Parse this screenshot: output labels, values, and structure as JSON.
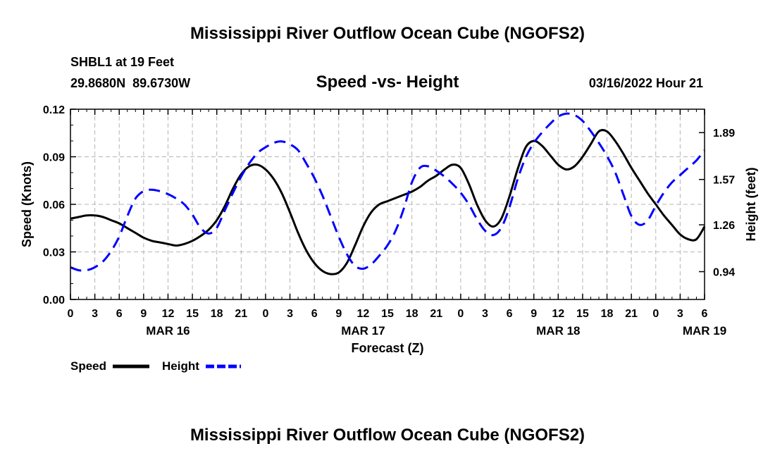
{
  "header": {
    "title": "Mississippi River Outflow Ocean Cube (NGOFS2)",
    "station": "SHBL1 at 19 Feet",
    "coords": "29.8680N  89.6730W",
    "subtitle": "Speed -vs- Height",
    "datetime": "03/16/2022 Hour 21"
  },
  "footer": {
    "title": "Mississippi River Outflow Ocean Cube (NGOFS2)"
  },
  "chart_data": {
    "type": "line",
    "title": "Speed -vs- Height",
    "xlabel": "Forecast (Z)",
    "ylabel": "Speed (Knots)",
    "y2label": "Height (feet)",
    "xlim": [
      0,
      78
    ],
    "ylim": [
      0,
      0.12
    ],
    "y2lim": [
      0.75,
      2.05
    ],
    "grid": true,
    "x_ticks": [
      0,
      3,
      6,
      9,
      12,
      15,
      18,
      21,
      24,
      27,
      30,
      33,
      36,
      39,
      42,
      45,
      48,
      51,
      54,
      57,
      60,
      63,
      66,
      69,
      72,
      75,
      78
    ],
    "x_tick_labels": [
      "0",
      "3",
      "6",
      "9",
      "12",
      "15",
      "18",
      "21",
      "0",
      "3",
      "6",
      "9",
      "12",
      "15",
      "18",
      "21",
      "0",
      "3",
      "6",
      "9",
      "12",
      "15",
      "18",
      "21",
      "0",
      "3",
      "6"
    ],
    "date_labels": [
      {
        "x": 12,
        "label": "MAR 16"
      },
      {
        "x": 36,
        "label": "MAR 17"
      },
      {
        "x": 60,
        "label": "MAR 18"
      },
      {
        "x": 78,
        "label": "MAR 19"
      }
    ],
    "y_ticks": [
      0.0,
      0.03,
      0.06,
      0.09,
      0.12
    ],
    "y_tick_labels": [
      "0.00",
      "0.03",
      "0.06",
      "0.09",
      "0.12"
    ],
    "y2_ticks": [
      0.94,
      1.26,
      1.57,
      1.89
    ],
    "y2_tick_labels": [
      "0.94",
      "1.26",
      "1.57",
      "1.89"
    ],
    "series": [
      {
        "name": "Speed",
        "axis": "left",
        "color": "#000000",
        "dash": "solid",
        "x": [
          0,
          1,
          2,
          3,
          4,
          5,
          6,
          7,
          8,
          9,
          10,
          11,
          12,
          13,
          14,
          15,
          16,
          17,
          18,
          19,
          20,
          21,
          22,
          23,
          24,
          25,
          26,
          27,
          28,
          29,
          30,
          31,
          32,
          33,
          34,
          35,
          36,
          37,
          38,
          39,
          40,
          41,
          42,
          43,
          44,
          45,
          46,
          47,
          48,
          49,
          50,
          51,
          52,
          53,
          54,
          55,
          56,
          57,
          58,
          59,
          60,
          61,
          62,
          63,
          64,
          65,
          66,
          67,
          68,
          69,
          70,
          71,
          72,
          73,
          74,
          75,
          76,
          77,
          78
        ],
        "values": [
          0.051,
          0.052,
          0.053,
          0.053,
          0.052,
          0.05,
          0.048,
          0.045,
          0.042,
          0.039,
          0.037,
          0.036,
          0.035,
          0.034,
          0.035,
          0.037,
          0.04,
          0.044,
          0.05,
          0.059,
          0.07,
          0.079,
          0.084,
          0.085,
          0.082,
          0.076,
          0.067,
          0.055,
          0.042,
          0.031,
          0.023,
          0.018,
          0.016,
          0.017,
          0.023,
          0.034,
          0.046,
          0.055,
          0.06,
          0.062,
          0.064,
          0.066,
          0.068,
          0.071,
          0.075,
          0.078,
          0.082,
          0.085,
          0.083,
          0.073,
          0.06,
          0.05,
          0.046,
          0.051,
          0.065,
          0.082,
          0.096,
          0.1,
          0.097,
          0.091,
          0.085,
          0.082,
          0.084,
          0.09,
          0.098,
          0.106,
          0.106,
          0.1,
          0.092,
          0.083,
          0.075,
          0.067,
          0.06,
          0.053,
          0.047,
          0.041,
          0.038,
          0.038,
          0.046
        ]
      },
      {
        "name": "Height",
        "axis": "right",
        "color": "#0000ff",
        "dash": "dashed",
        "x": [
          0,
          1,
          2,
          3,
          4,
          5,
          6,
          7,
          8,
          9,
          10,
          11,
          12,
          13,
          14,
          15,
          16,
          17,
          18,
          19,
          20,
          21,
          22,
          23,
          24,
          25,
          26,
          27,
          28,
          29,
          30,
          31,
          32,
          33,
          34,
          35,
          36,
          37,
          38,
          39,
          40,
          41,
          42,
          43,
          44,
          45,
          46,
          47,
          48,
          49,
          50,
          51,
          52,
          53,
          54,
          55,
          56,
          57,
          58,
          59,
          60,
          61,
          62,
          63,
          64,
          65,
          66,
          67,
          68,
          69,
          70,
          71,
          72,
          73,
          74,
          75,
          76,
          77,
          78
        ],
        "values": [
          0.97,
          0.95,
          0.95,
          0.97,
          1.01,
          1.08,
          1.18,
          1.32,
          1.44,
          1.49,
          1.5,
          1.49,
          1.47,
          1.44,
          1.4,
          1.33,
          1.24,
          1.2,
          1.24,
          1.36,
          1.48,
          1.59,
          1.68,
          1.75,
          1.79,
          1.82,
          1.83,
          1.81,
          1.77,
          1.68,
          1.58,
          1.46,
          1.32,
          1.18,
          1.06,
          0.98,
          0.96,
          0.99,
          1.05,
          1.12,
          1.22,
          1.37,
          1.55,
          1.65,
          1.66,
          1.63,
          1.59,
          1.54,
          1.48,
          1.4,
          1.3,
          1.22,
          1.19,
          1.24,
          1.38,
          1.57,
          1.72,
          1.82,
          1.89,
          1.95,
          2.0,
          2.02,
          2.01,
          1.97,
          1.9,
          1.82,
          1.73,
          1.62,
          1.47,
          1.32,
          1.26,
          1.29,
          1.39,
          1.48,
          1.55,
          1.6,
          1.65,
          1.7,
          1.77
        ]
      }
    ],
    "legend": [
      {
        "label": "Speed",
        "color": "#000000",
        "dash": "solid"
      },
      {
        "label": "Height",
        "color": "#0000ff",
        "dash": "dashed"
      }
    ],
    "legend_position": "bottom-left"
  }
}
